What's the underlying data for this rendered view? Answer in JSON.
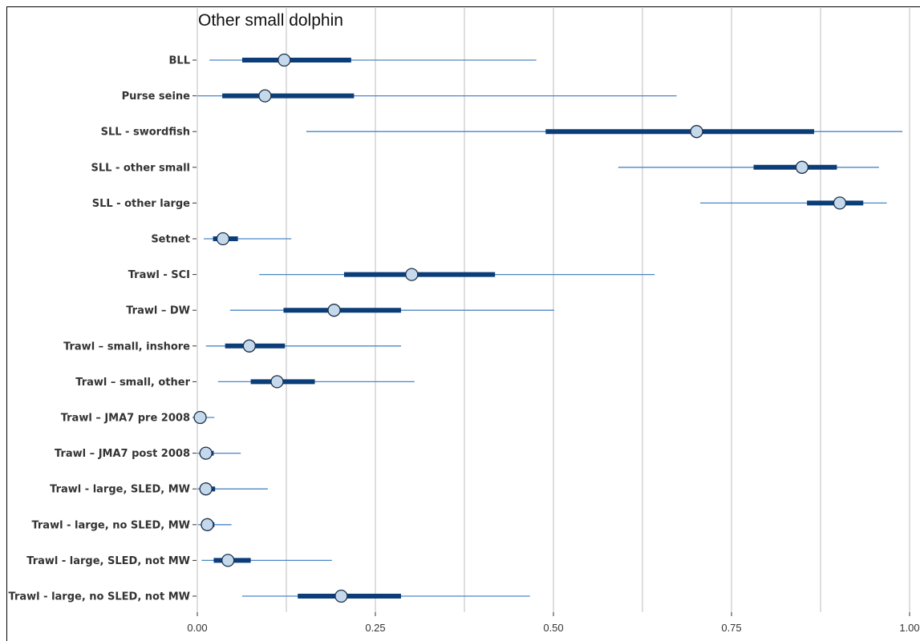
{
  "chart_data": {
    "type": "interval",
    "title": "Other small dolphin",
    "xlabel": "",
    "ylabel": "",
    "xlim": [
      0,
      1
    ],
    "x_ticks": [
      {
        "value": 0.0,
        "label": "0.00"
      },
      {
        "value": 0.25,
        "label": "0.25"
      },
      {
        "value": 0.5,
        "label": "0.50"
      },
      {
        "value": 0.75,
        "label": "0.75"
      },
      {
        "value": 1.0,
        "label": "1.00"
      }
    ],
    "grid": true,
    "colors": {
      "outer": "#4a86c5",
      "inner": "#0b3d78",
      "point_fill": "#c5d9ec",
      "point_stroke": "#1d2e47",
      "grid": "#c8c8c8"
    },
    "rows": [
      {
        "category": "BLL",
        "median": 0.122,
        "inner": [
          0.063,
          0.216
        ],
        "outer": [
          0.017,
          0.476
        ]
      },
      {
        "category": "Purse seine",
        "median": 0.095,
        "inner": [
          0.035,
          0.22
        ],
        "outer": [
          0.0,
          0.673
        ]
      },
      {
        "category": "SLL - swordfish",
        "median": 0.701,
        "inner": [
          0.489,
          0.866
        ],
        "outer": [
          0.153,
          0.99
        ]
      },
      {
        "category": "SLL - other small",
        "median": 0.849,
        "inner": [
          0.781,
          0.898
        ],
        "outer": [
          0.591,
          0.957
        ]
      },
      {
        "category": "SLL - other large",
        "median": 0.902,
        "inner": [
          0.856,
          0.935
        ],
        "outer": [
          0.706,
          0.968
        ]
      },
      {
        "category": "Setnet",
        "median": 0.036,
        "inner": [
          0.022,
          0.057
        ],
        "outer": [
          0.009,
          0.132
        ]
      },
      {
        "category": "Trawl - SCI",
        "median": 0.301,
        "inner": [
          0.206,
          0.418
        ],
        "outer": [
          0.087,
          0.642
        ]
      },
      {
        "category": "Trawl – DW",
        "median": 0.192,
        "inner": [
          0.121,
          0.286
        ],
        "outer": [
          0.046,
          0.501
        ]
      },
      {
        "category": "Trawl – small, inshore",
        "median": 0.073,
        "inner": [
          0.039,
          0.123
        ],
        "outer": [
          0.012,
          0.286
        ]
      },
      {
        "category": "Trawl – small, other",
        "median": 0.112,
        "inner": [
          0.075,
          0.165
        ],
        "outer": [
          0.029,
          0.305
        ]
      },
      {
        "category": "Trawl – JMA7 pre 2008",
        "median": 0.004,
        "inner": [
          0.001,
          0.009
        ],
        "outer": [
          0.0,
          0.024
        ]
      },
      {
        "category": "Trawl – JMA7 post 2008",
        "median": 0.012,
        "inner": [
          0.004,
          0.023
        ],
        "outer": [
          0.0,
          0.061
        ]
      },
      {
        "category": "Trawl - large, SLED, MW",
        "median": 0.012,
        "inner": [
          0.005,
          0.025
        ],
        "outer": [
          0.0,
          0.099
        ]
      },
      {
        "category": "Trawl - large, no SLED, MW",
        "median": 0.014,
        "inner": [
          0.006,
          0.024
        ],
        "outer": [
          0.001,
          0.048
        ]
      },
      {
        "category": "Trawl - large, SLED, not MW",
        "median": 0.043,
        "inner": [
          0.023,
          0.075
        ],
        "outer": [
          0.006,
          0.189
        ]
      },
      {
        "category": "Trawl - large, no SLED, not MW",
        "median": 0.202,
        "inner": [
          0.141,
          0.286
        ],
        "outer": [
          0.063,
          0.467
        ]
      }
    ]
  }
}
